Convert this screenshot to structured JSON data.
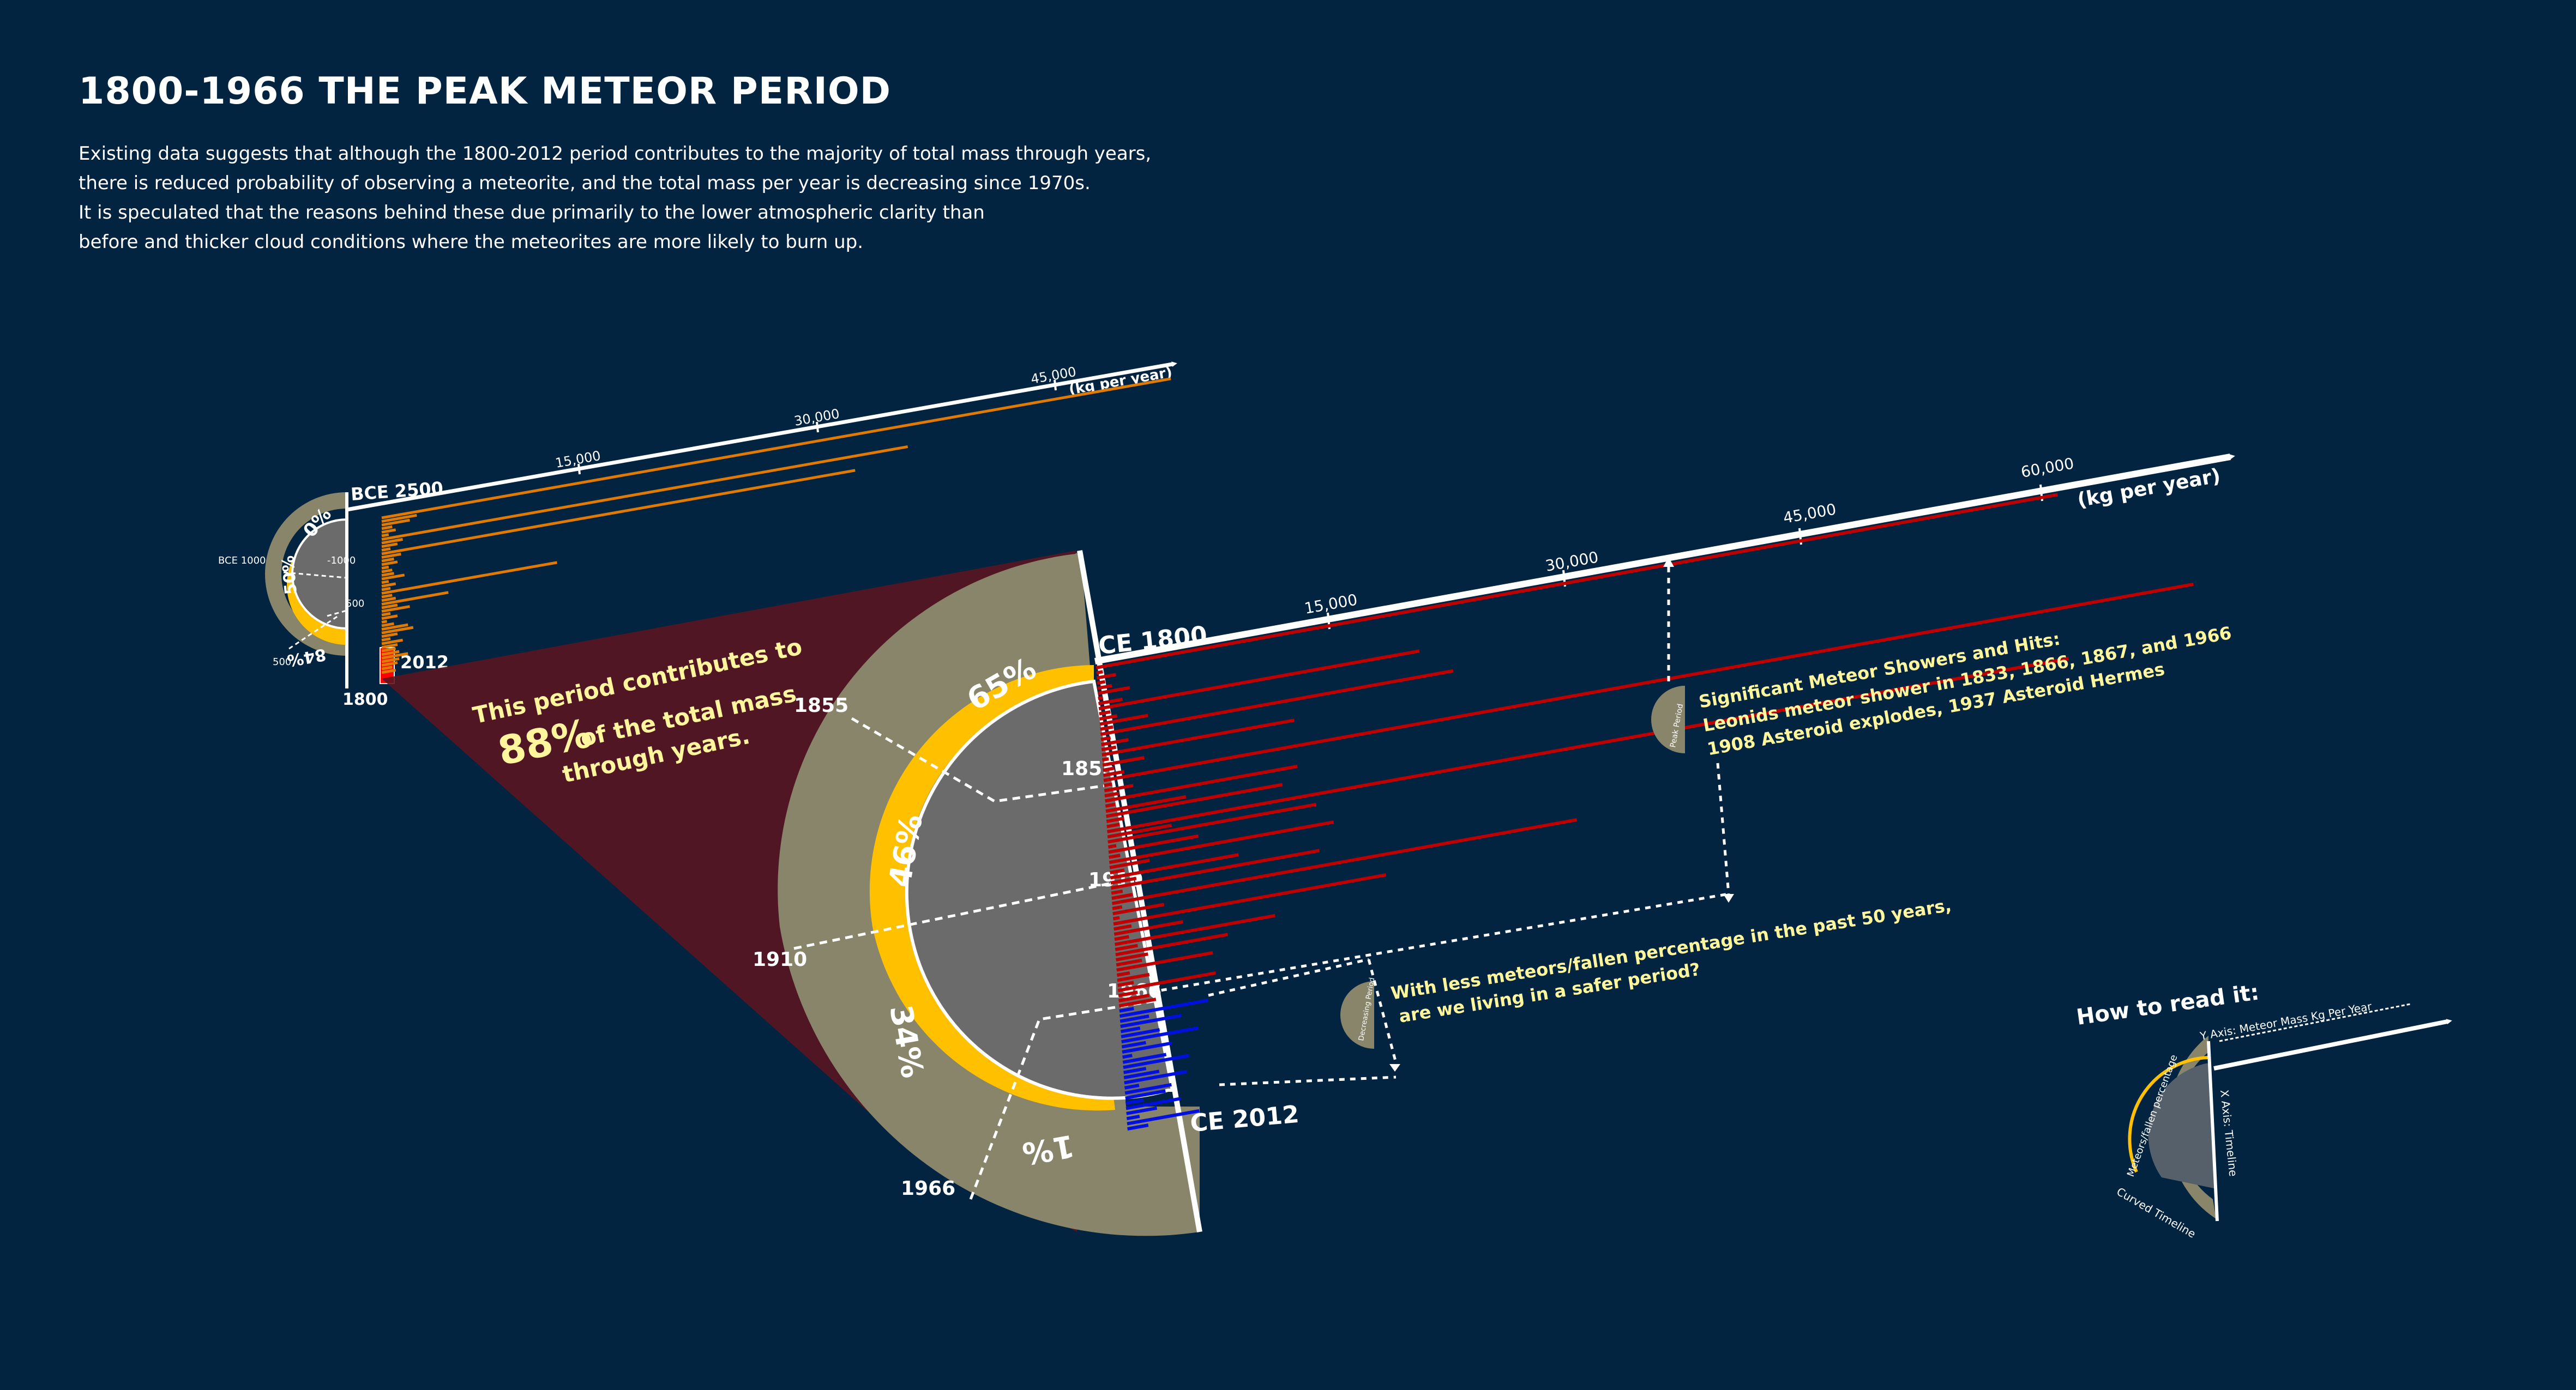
{
  "page": {
    "title": "1800-1966 THE PEAK METEOR PERIOD",
    "intro": [
      "Existing data suggests that although the 1800-2012 period contributes to the majority of total mass through years,",
      "there is reduced probability of observing a meteorite, and the total mass per year is decreasing since 1970s.",
      "It is speculated that the reasons behind these due primarily to the lower atmospheric clarity than",
      "before and thicker cloud conditions where the meteorites are more likely to burn up."
    ]
  },
  "colors": {
    "background": "#032440",
    "outer_ring": "#88856a",
    "yellow_ring": "#ffc000",
    "inner_disc": "#6b6b6b",
    "peak_bar": "#c00000",
    "recent_bar": "#0010e0",
    "ancient_bar": "#e07a00",
    "highlight": "#5a1521",
    "annotation_text": "#fff59d"
  },
  "chart_data": [
    {
      "type": "bar",
      "name_key": "small_chart",
      "axis_label": "(kg per year)",
      "ticks": [
        "15,000",
        "30,000",
        "45,000"
      ],
      "xlim": [
        0,
        49000
      ],
      "period_labels": [
        "BCE 2500",
        "2012"
      ],
      "timeline_labels": [
        "BCE 1000",
        "-1000",
        "500",
        "500",
        "1800"
      ],
      "percent_labels": [
        "0%",
        "50%",
        "84%"
      ],
      "values": [
        45000,
        2000,
        1600,
        600,
        800,
        400,
        30000,
        1200,
        900,
        500,
        27000,
        1100,
        700,
        900,
        400,
        600,
        700,
        1300,
        400,
        800,
        500,
        10000,
        600,
        800,
        3800,
        900,
        1600,
        500,
        900,
        300,
        700,
        1500,
        1800,
        900,
        500,
        1200,
        900,
        800,
        1000,
        1500,
        1000,
        900,
        600,
        800
      ]
    },
    {
      "type": "bar",
      "name_key": "main_chart",
      "axis_label": "(kg per year)",
      "ticks": [
        "15,000",
        "30,000",
        "45,000",
        "60,000"
      ],
      "xlim": [
        0,
        72000
      ],
      "period_labels": [
        "CE 1800",
        "CE 2012"
      ],
      "inner_timeline_labels": [
        "1855",
        "1910",
        "1966"
      ],
      "outer_timeline_labels": [
        "1855",
        "1910",
        "1966"
      ],
      "percent_labels": [
        "65%",
        "46%",
        "34%",
        "1%"
      ],
      "peak_series": [
        60000,
        400,
        1200,
        500,
        900,
        2000,
        300,
        1500,
        20000,
        700,
        1100,
        3000,
        800,
        22000,
        600,
        1700,
        900,
        12000,
        400,
        2600,
        700,
        1300,
        68000,
        500,
        1800,
        900,
        12000,
        600,
        5000,
        11000,
        1100,
        800,
        60000,
        4000,
        13000,
        500,
        5600,
        700,
        14000,
        2500,
        900,
        8000,
        1600,
        13000,
        700,
        1300,
        29000,
        600,
        3200,
        400,
        17000,
        1100,
        4300,
        900,
        10000,
        1400,
        7000,
        2000,
        1600,
        6000,
        800,
        2000,
        1000,
        6100,
        1200,
        1900,
        2300
      ],
      "recent_series": [
        900,
        5500,
        1800,
        3800,
        1200,
        2400,
        4800,
        1500,
        3100,
        600,
        2700,
        4100,
        1400,
        2200,
        3900,
        900,
        2900,
        2500,
        1100,
        3400,
        1900,
        800,
        4500,
        1300
      ]
    }
  ],
  "callout": {
    "line1": "This period contributes to",
    "percent": "88%",
    "line2_rest": "of the total mass",
    "line3": "through years."
  },
  "annotations": {
    "peak_tag": "Peak Period",
    "peak_lines": [
      "Significant Meteor Showers and Hits:",
      "Leonids meteor shower in 1833, 1866, 1867, and 1966",
      "1908 Asteroid explodes, 1937 Asteroid Hermes"
    ],
    "recent_tag": "Decreasing Period",
    "recent_lines": [
      "With less meteors/fallen percentage in the past 50 years,",
      "are we living in a safer period?"
    ]
  },
  "legend": {
    "title": "How to read it:",
    "y_axis": "Y Axis: Meteor Mass Kg Per Year",
    "x_axis": "X Axis: Timeline",
    "curved": "Curved Timeline",
    "percent": "Meteors/fallen percentage"
  }
}
